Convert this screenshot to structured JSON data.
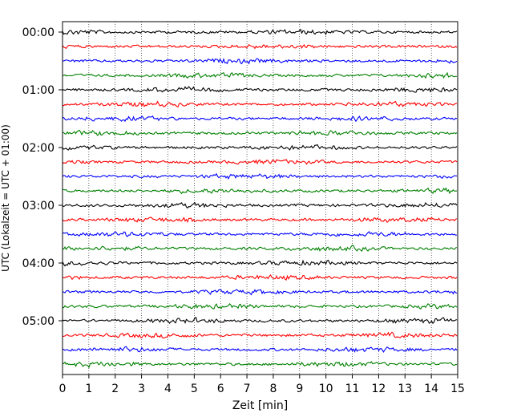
{
  "chart_data": {
    "type": "line",
    "title": "",
    "xlabel": "Zeit  [min]",
    "ylabel": "UTC (Lokalzeit = UTC + 01:00)",
    "xlim": [
      0,
      15
    ],
    "x_ticks": [
      "0",
      "1",
      "2",
      "3",
      "4",
      "5",
      "6",
      "7",
      "8",
      "9",
      "10",
      "11",
      "12",
      "13",
      "14",
      "15"
    ],
    "y_ticks": [
      "00:00",
      "01:00",
      "02:00",
      "03:00",
      "04:00",
      "05:00"
    ],
    "grid": "vertical-dotted",
    "colors": [
      "#000000",
      "#ff0000",
      "#0000ff",
      "#008000"
    ],
    "trace_minutes": 15,
    "trace_count": 24,
    "traces_start": "00:00",
    "traces_end": "05:45"
  }
}
